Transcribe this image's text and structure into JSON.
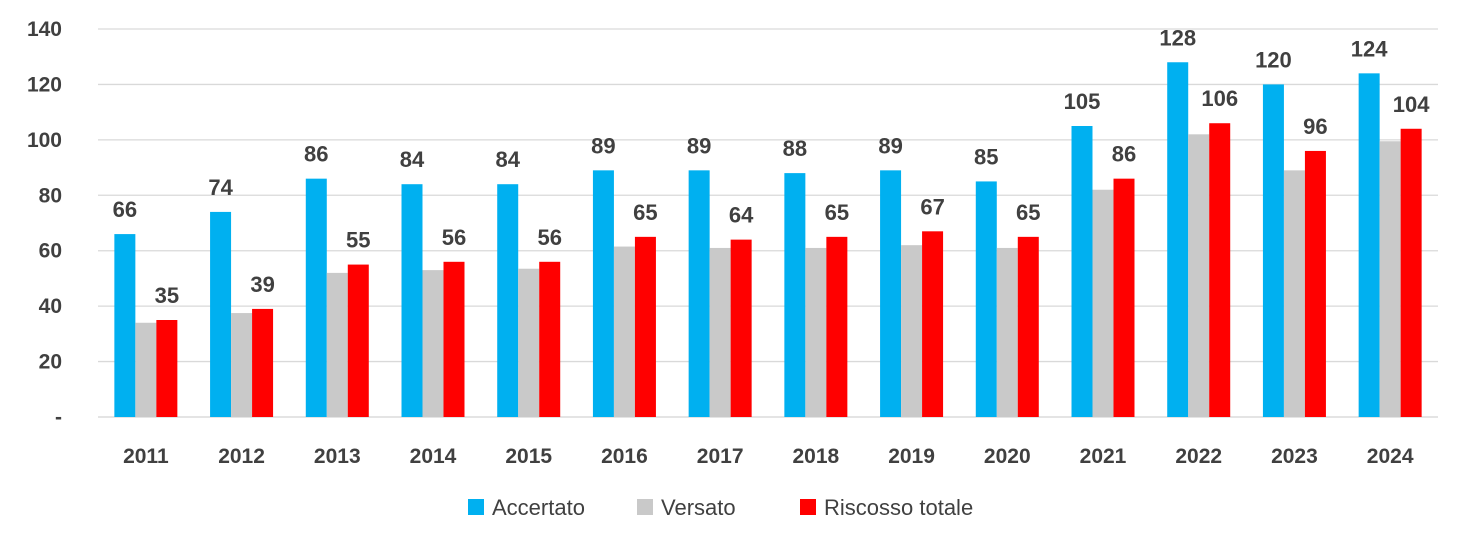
{
  "chart_data": {
    "type": "bar",
    "title": "",
    "xlabel": "",
    "ylabel": "",
    "categories": [
      "2011",
      "2012",
      "2013",
      "2014",
      "2015",
      "2016",
      "2017",
      "2018",
      "2019",
      "2020",
      "2021",
      "2022",
      "2023",
      "2024"
    ],
    "series": [
      {
        "name": "Accertato",
        "color": "#00b0f0",
        "values": [
          66,
          74,
          86,
          84,
          84,
          89,
          89,
          88,
          89,
          85,
          105,
          128,
          120,
          124
        ],
        "labels": [
          "66",
          "74",
          "86",
          "84",
          "84",
          "89",
          "89",
          "88",
          "89",
          "85",
          "105",
          "128",
          "120",
          "124"
        ]
      },
      {
        "name": "Versato",
        "color": "#c9c9c9",
        "values": [
          34,
          37.5,
          52,
          53,
          53.5,
          61.5,
          61,
          61,
          62,
          61,
          82,
          102,
          89,
          99.5
        ],
        "labels": null
      },
      {
        "name": "Riscosso totale",
        "color": "#ff0000",
        "values": [
          35,
          39,
          55,
          56,
          56,
          65,
          64,
          65,
          67,
          65,
          86,
          106,
          96,
          104
        ],
        "labels": [
          "35",
          "39",
          "55",
          "56",
          "56",
          "65",
          "64",
          "65",
          "67",
          "65",
          "86",
          "106",
          "96",
          "104"
        ]
      }
    ],
    "ylim": [
      0,
      140
    ],
    "yticks": [
      {
        "value": 0,
        "label": "-"
      },
      {
        "value": 20,
        "label": "20"
      },
      {
        "value": 40,
        "label": "40"
      },
      {
        "value": 60,
        "label": "60"
      },
      {
        "value": 80,
        "label": "80"
      },
      {
        "value": 100,
        "label": "100"
      },
      {
        "value": 120,
        "label": "120"
      },
      {
        "value": 140,
        "label": "140"
      }
    ],
    "grid": true,
    "legend_position": "bottom"
  }
}
